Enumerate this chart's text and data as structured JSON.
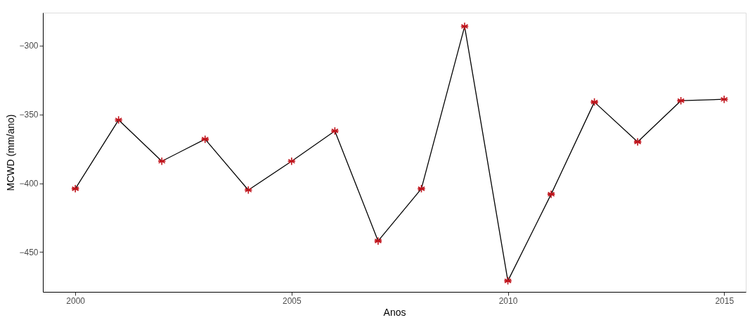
{
  "chart_data": {
    "type": "line",
    "xlabel": "Anos",
    "ylabel": "MCWD (mm/ano)",
    "x": [
      2000,
      2001,
      2002,
      2003,
      2004,
      2005,
      2006,
      2007,
      2008,
      2009,
      2010,
      2011,
      2012,
      2013,
      2014,
      2015
    ],
    "series": [
      {
        "color": "#000000",
        "marker": "none",
        "values": [
          -404,
          -354,
          -384,
          -368,
          -405,
          -384,
          -362,
          -442,
          -404,
          -286,
          -471,
          -408,
          -341,
          -370,
          -340,
          -339
        ]
      },
      {
        "type": "scatter",
        "marker": "cross",
        "color": "#c0141c",
        "values": [
          -404,
          -354,
          -384,
          -368,
          -405,
          -384,
          -362,
          -442,
          -404,
          -286,
          -471,
          -408,
          -341,
          -370,
          -340,
          -339
        ]
      }
    ],
    "line_style": "solid",
    "grid": false,
    "xlim": [
      1999.25,
      2015.5
    ],
    "xticks": [
      2000,
      2005,
      2010,
      2015
    ],
    "ylim": [
      -479,
      -276
    ],
    "yticks": [
      -450,
      -400,
      -350,
      -300
    ]
  }
}
